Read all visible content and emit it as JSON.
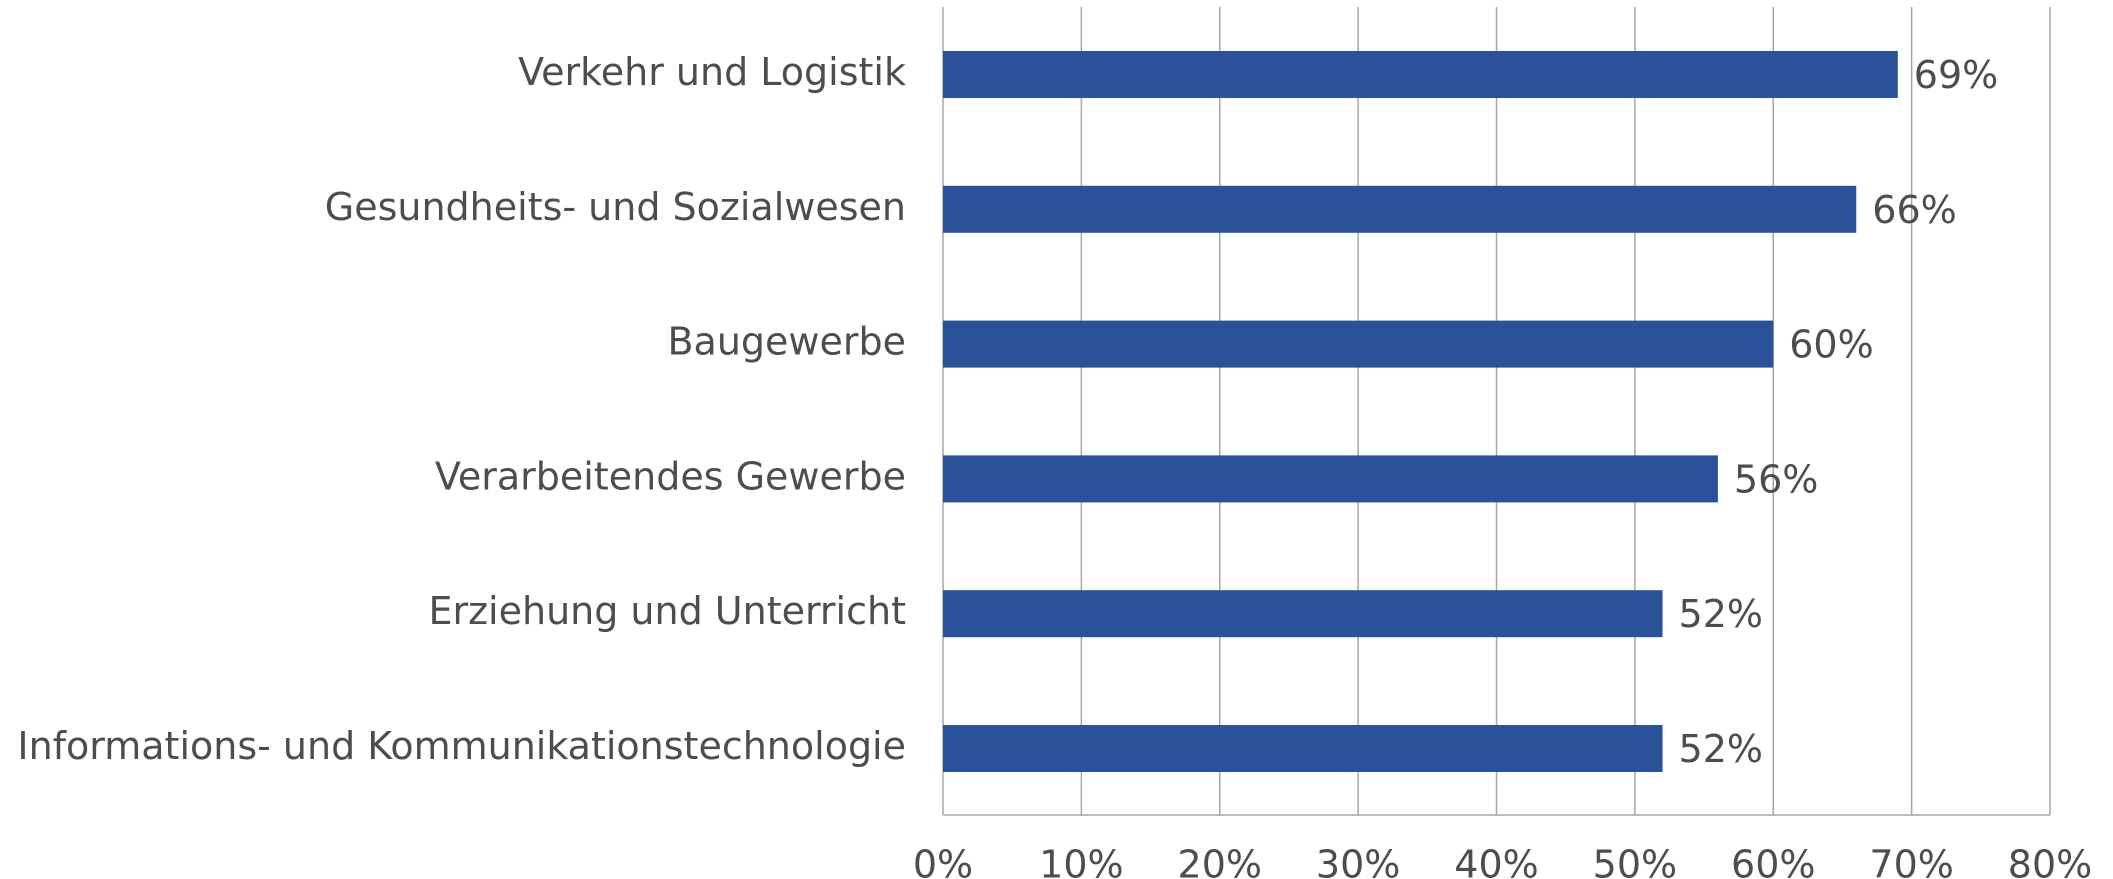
{
  "chart_data": {
    "type": "hbar",
    "categories": [
      "Verkehr und Logistik",
      "Gesundheits- und Sozialwesen",
      "Baugewerbe",
      "Verarbeitendes Gewerbe",
      "Erziehung und Unterricht",
      "Informations- und Kommunikationstechnologie"
    ],
    "values": [
      69,
      66,
      60,
      56,
      52,
      52
    ],
    "value_labels": [
      "69%",
      "66%",
      "60%",
      "56%",
      "52%",
      "52%"
    ],
    "color": "#2a5298",
    "xlim": [
      0,
      80
    ],
    "xticks": [
      {
        "value": 0,
        "label": "0%"
      },
      {
        "value": 10,
        "label": "10%"
      },
      {
        "value": 20,
        "label": "20%"
      },
      {
        "value": 30,
        "label": "30%"
      },
      {
        "value": 40,
        "label": "40%"
      },
      {
        "value": 50,
        "label": "50%"
      },
      {
        "value": 60,
        "label": "60%"
      },
      {
        "value": 70,
        "label": "70%"
      },
      {
        "value": 80,
        "label": "80%"
      }
    ],
    "grid": true
  }
}
